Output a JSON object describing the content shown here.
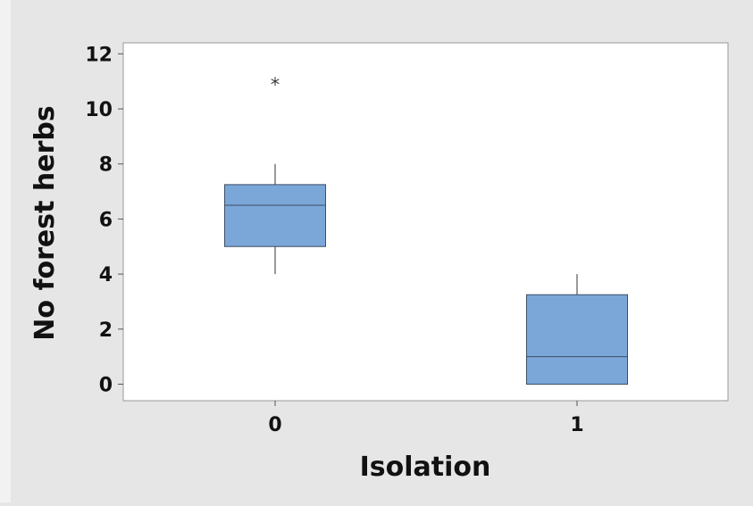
{
  "chart_data": {
    "type": "boxplot",
    "xlabel": "Isolation",
    "ylabel": "No forest herbs",
    "categories": [
      "0",
      "1"
    ],
    "ylim": [
      -0.6,
      12.4
    ],
    "yticks": [
      0,
      2,
      4,
      6,
      8,
      10,
      12
    ],
    "boxes": [
      {
        "category": "0",
        "whisker_low": 4,
        "q1": 5,
        "median": 6.5,
        "q3": 7.25,
        "whisker_high": 8,
        "outliers": [
          11
        ]
      },
      {
        "category": "1",
        "whisker_low": 0,
        "q1": 0,
        "median": 1,
        "q3": 3.25,
        "whisker_high": 4,
        "outliers": []
      }
    ],
    "colors": {
      "box_fill": "#7ba6d8",
      "box_edge": "#3d4f66",
      "line": "#333333",
      "plot_bg": "#ffffff",
      "figure_bg": "#e6e6e6"
    },
    "grid": false
  }
}
